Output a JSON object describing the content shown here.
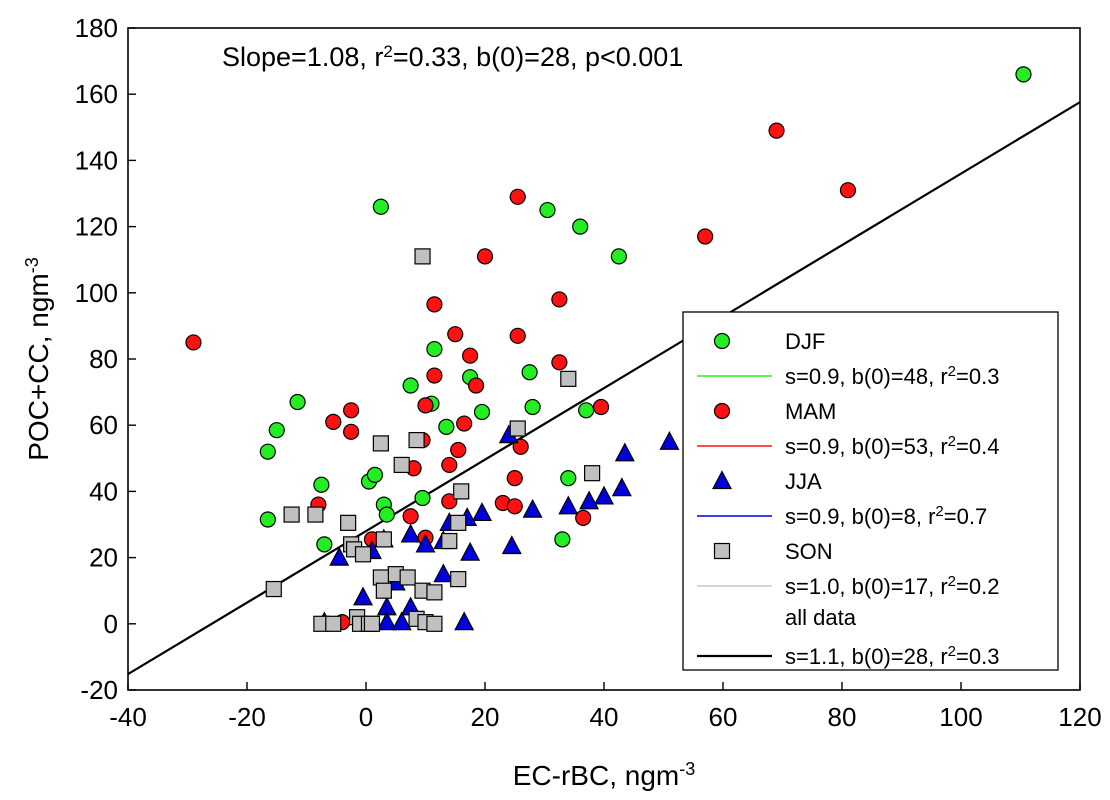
{
  "chart_data": {
    "type": "scatter",
    "xlabel": "EC-rBC, ngm",
    "xlabel_sup": "-3",
    "ylabel": "POC+CC, ngm",
    "ylabel_sup": "-3",
    "xlim": [
      -40,
      120
    ],
    "ylim": [
      -20,
      180
    ],
    "x_ticks": [
      -40,
      -20,
      0,
      20,
      40,
      60,
      80,
      100,
      120
    ],
    "y_ticks": [
      -20,
      0,
      20,
      40,
      60,
      80,
      100,
      120,
      140,
      160,
      180
    ],
    "annotation": {
      "pre": "Slope=1.08, r",
      "sup": "2",
      "post": "=0.33, b(0)=28, p<0.001"
    },
    "grid": false,
    "legend_position": "bottom-right",
    "series": [
      {
        "name": "DJF",
        "marker": "circle",
        "color": "#22ee22",
        "fit_label": {
          "pre": "s=0.9, b(0)=48, r",
          "sup": "2",
          "post": "=0.3"
        },
        "fit_color": "#22ee22",
        "points": [
          [
            110.5,
            166
          ],
          [
            2.5,
            126
          ],
          [
            30.5,
            125
          ],
          [
            36,
            120
          ],
          [
            42.5,
            111
          ],
          [
            11.5,
            83
          ],
          [
            -11.5,
            67
          ],
          [
            -15,
            58.5
          ],
          [
            -16.5,
            52
          ],
          [
            -16.5,
            31.5
          ],
          [
            -7.5,
            42
          ],
          [
            -7,
            24
          ],
          [
            0.5,
            43
          ],
          [
            1.5,
            45
          ],
          [
            7.5,
            72
          ],
          [
            11,
            66.5
          ],
          [
            13.5,
            59.5
          ],
          [
            17.5,
            74.5
          ],
          [
            19.5,
            64
          ],
          [
            27.5,
            76
          ],
          [
            28,
            65.5
          ],
          [
            3,
            36
          ],
          [
            3.5,
            33
          ],
          [
            9.5,
            38
          ],
          [
            34,
            44
          ],
          [
            37,
            64.5
          ],
          [
            33,
            25.5
          ]
        ]
      },
      {
        "name": "MAM",
        "marker": "circle",
        "color": "#ff1111",
        "fit_label": {
          "pre": "s=0.9, b(0)=53, r",
          "sup": "2",
          "post": "=0.4"
        },
        "fit_color": "#ff1111",
        "points": [
          [
            -29,
            85
          ],
          [
            69,
            149
          ],
          [
            81,
            131
          ],
          [
            57,
            117
          ],
          [
            25.5,
            129
          ],
          [
            20,
            111
          ],
          [
            11.5,
            96.5
          ],
          [
            32.5,
            98
          ],
          [
            15,
            87.5
          ],
          [
            25.5,
            87
          ],
          [
            17.5,
            81
          ],
          [
            32.5,
            79
          ],
          [
            11.5,
            75
          ],
          [
            18.5,
            72
          ],
          [
            -5.5,
            61
          ],
          [
            -2.5,
            64.5
          ],
          [
            -2.5,
            58
          ],
          [
            10,
            66
          ],
          [
            39.5,
            65.5
          ],
          [
            16.5,
            60.5
          ],
          [
            9.5,
            55.5
          ],
          [
            15.5,
            52.5
          ],
          [
            26,
            53.5
          ],
          [
            8,
            47
          ],
          [
            14,
            48
          ],
          [
            -8,
            36
          ],
          [
            7.5,
            32.5
          ],
          [
            14,
            37
          ],
          [
            23,
            36.5
          ],
          [
            25,
            44
          ],
          [
            25,
            35.5
          ],
          [
            1,
            25.5
          ],
          [
            10,
            26
          ],
          [
            36.5,
            32
          ],
          [
            -4,
            0.5
          ]
        ]
      },
      {
        "name": "JJA",
        "marker": "triangle",
        "color": "#0000dd",
        "fit_label": {
          "pre": "s=0.9, b(0)=8, r",
          "sup": "2",
          "post": "=0.7"
        },
        "fit_color": "#0000dd",
        "points": [
          [
            51,
            55
          ],
          [
            43.5,
            51.5
          ],
          [
            24,
            57
          ],
          [
            43,
            41
          ],
          [
            40,
            38.5
          ],
          [
            37.5,
            37
          ],
          [
            34,
            35.5
          ],
          [
            28,
            34.5
          ],
          [
            19.5,
            33.5
          ],
          [
            17,
            32
          ],
          [
            14,
            30.5
          ],
          [
            13,
            25
          ],
          [
            3,
            25.5
          ],
          [
            7.5,
            27
          ],
          [
            10,
            24
          ],
          [
            1,
            22
          ],
          [
            -4.5,
            20
          ],
          [
            17.5,
            21.5
          ],
          [
            24.5,
            23.5
          ],
          [
            13,
            15
          ],
          [
            5,
            12.5
          ],
          [
            -0.5,
            8
          ],
          [
            3.5,
            5
          ],
          [
            7.5,
            5
          ],
          [
            3.5,
            0.5
          ],
          [
            6,
            0.5
          ],
          [
            16.5,
            0.5
          ],
          [
            -7,
            0.5
          ]
        ]
      },
      {
        "name": "SON",
        "marker": "square",
        "color": "#c0c0c0",
        "fit_label": {
          "pre": "s=1.0, b(0)=17, r",
          "sup": "2",
          "post": "=0.2"
        },
        "fit_color": "#c8c8c8",
        "points": [
          [
            9.5,
            111
          ],
          [
            34,
            74
          ],
          [
            25.5,
            59
          ],
          [
            8.5,
            55.5
          ],
          [
            2.5,
            54.5
          ],
          [
            6,
            48
          ],
          [
            38,
            45.5
          ],
          [
            16,
            40
          ],
          [
            -3,
            30.5
          ],
          [
            -8.5,
            33
          ],
          [
            -12.5,
            33
          ],
          [
            15.5,
            30.5
          ],
          [
            14,
            25
          ],
          [
            3,
            25.5
          ],
          [
            -2.5,
            24
          ],
          [
            -2,
            22.5
          ],
          [
            -0.5,
            21
          ],
          [
            5,
            15
          ],
          [
            7,
            14
          ],
          [
            2.5,
            14
          ],
          [
            15.5,
            13.5
          ],
          [
            3,
            10
          ],
          [
            9.5,
            10
          ],
          [
            11.5,
            9.5
          ],
          [
            -15.5,
            10.5
          ],
          [
            -7.5,
            0
          ],
          [
            -5.5,
            0
          ],
          [
            -1.5,
            2
          ],
          [
            -1,
            0
          ],
          [
            0.5,
            0
          ],
          [
            1,
            0
          ],
          [
            8.5,
            1.5
          ],
          [
            10,
            0.5
          ],
          [
            11.5,
            0
          ]
        ]
      }
    ],
    "all_data": {
      "name": "all data",
      "fit_label": {
        "pre": "s=1.1, b(0)=28, r",
        "sup": "2",
        "post": "=0.3"
      },
      "fit_color": "#000000",
      "slope": 1.08,
      "intercept": 28
    }
  }
}
